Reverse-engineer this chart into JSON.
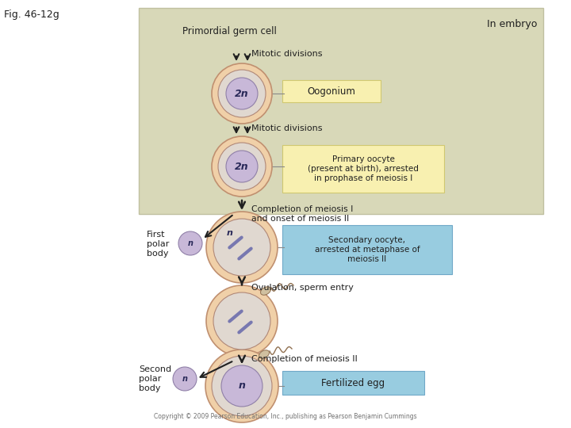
{
  "fig_label": "Fig. 46-12g",
  "bg_color": "#ffffff",
  "embryo_box_color": "#d8d8b8",
  "embryo_box_edge": "#c0c0a0",
  "yellow_box_color": "#f8f0b0",
  "yellow_box_edge": "#d0c870",
  "blue_box_color": "#98cce0",
  "blue_box_edge": "#70a8c8",
  "cell_outer": "#f0d0a8",
  "cell_inner": "#e8c890",
  "cell_ring": "#e0d8d0",
  "nuc_outer": "#c8b8d8",
  "nuc_inner": "#b0a0cc",
  "polar_color": "#c8b8d8",
  "arrow_color": "#202020",
  "text_color": "#202020",
  "line_color": "#888888",
  "chr_color": "#7878b0",
  "labels": {
    "fig": "Fig. 46-12g",
    "in_embryo": "In embryo",
    "primordial": "Primordial germ cell",
    "mitotic1": "Mitotic divisions",
    "oogonium": "Oogonium",
    "mitotic2": "Mitotic divisions",
    "primary": "Primary oocyte\n(present at birth), arrested\nin prophase of meiosis I",
    "completion1": "Completion of meiosis I\nand onset of meiosis II",
    "first_polar": "First\npolar\nbody",
    "secondary": "Secondary oocyte,\narrested at metaphase of\nmeiosis II",
    "ovulation": "Ovulation, sperm entry",
    "completion2": "Completion of meiosis II",
    "second_polar": "Second\npolar\nbody",
    "fertilized": "Fertilized egg",
    "copyright": "Copyright © 2009 Pearson Education, Inc., publishing as Pearson Benjamin Cummings"
  }
}
